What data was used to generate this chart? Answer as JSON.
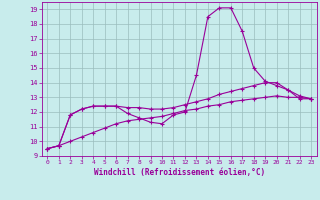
{
  "background_color": "#c8ecec",
  "grid_color": "#9bbebe",
  "line_color": "#990099",
  "xlim": [
    -0.5,
    23.5
  ],
  "ylim": [
    9,
    19.5
  ],
  "xticks": [
    0,
    1,
    2,
    3,
    4,
    5,
    6,
    7,
    8,
    9,
    10,
    11,
    12,
    13,
    14,
    15,
    16,
    17,
    18,
    19,
    20,
    21,
    22,
    23
  ],
  "yticks": [
    9,
    10,
    11,
    12,
    13,
    14,
    15,
    16,
    17,
    18,
    19
  ],
  "xlabel": "Windchill (Refroidissement éolien,°C)",
  "series1_x": [
    0,
    1,
    2,
    3,
    4,
    5,
    6,
    7,
    8,
    9,
    10,
    11,
    12,
    13,
    14,
    15,
    16,
    17,
    18,
    19,
    20,
    21,
    22,
    23
  ],
  "series1_y": [
    9.5,
    9.7,
    11.8,
    12.2,
    12.4,
    12.4,
    12.4,
    11.9,
    11.6,
    11.3,
    11.2,
    11.8,
    12.0,
    14.5,
    18.5,
    19.1,
    19.1,
    17.5,
    15.0,
    14.1,
    13.8,
    13.5,
    12.9,
    12.9
  ],
  "series2_x": [
    0,
    1,
    2,
    3,
    4,
    5,
    6,
    7,
    8,
    9,
    10,
    11,
    12,
    13,
    14,
    15,
    16,
    17,
    18,
    19,
    20,
    21,
    22,
    23
  ],
  "series2_y": [
    9.5,
    9.7,
    11.8,
    12.2,
    12.4,
    12.4,
    12.4,
    12.3,
    12.3,
    12.2,
    12.2,
    12.3,
    12.5,
    12.7,
    12.9,
    13.2,
    13.4,
    13.6,
    13.8,
    14.0,
    14.0,
    13.5,
    13.1,
    12.9
  ],
  "series3_x": [
    0,
    1,
    2,
    3,
    4,
    5,
    6,
    7,
    8,
    9,
    10,
    11,
    12,
    13,
    14,
    15,
    16,
    17,
    18,
    19,
    20,
    21,
    22,
    23
  ],
  "series3_y": [
    9.5,
    9.7,
    10.0,
    10.3,
    10.6,
    10.9,
    11.2,
    11.4,
    11.5,
    11.6,
    11.7,
    11.9,
    12.1,
    12.2,
    12.4,
    12.5,
    12.7,
    12.8,
    12.9,
    13.0,
    13.1,
    13.0,
    13.0,
    12.9
  ],
  "figsize": [
    3.2,
    2.0
  ],
  "dpi": 100
}
